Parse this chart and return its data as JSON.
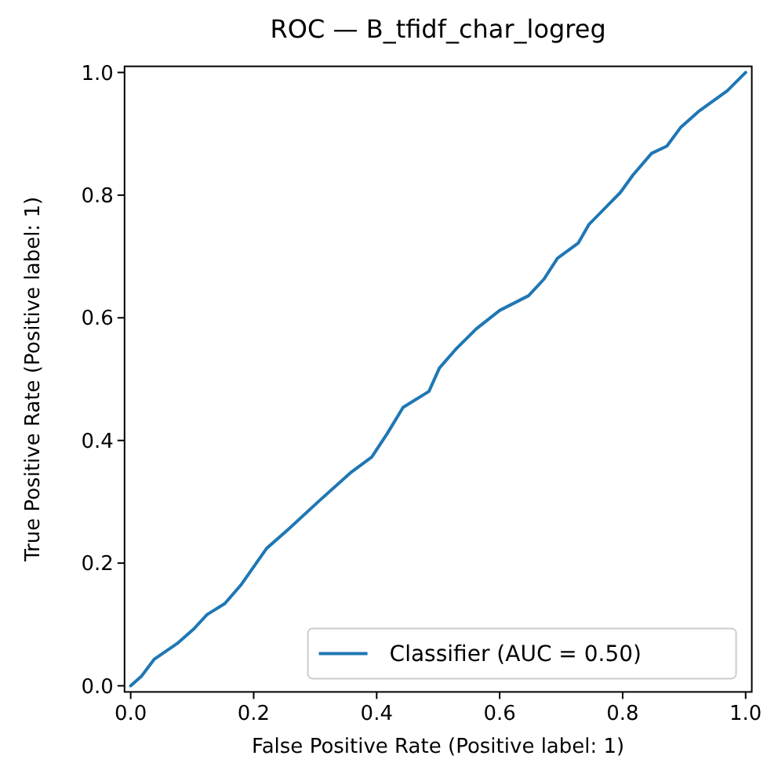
{
  "chart_data": {
    "type": "line",
    "title": "ROC — B_tfidf_char_logreg",
    "xlabel": "False Positive Rate (Positive label: 1)",
    "ylabel": "True Positive Rate (Positive label: 1)",
    "xlim": [
      -0.01,
      1.01
    ],
    "ylim": [
      -0.01,
      1.01
    ],
    "xticks": [
      {
        "value": 0,
        "label": "0.0"
      },
      0.2,
      0.4,
      0.6,
      0.8,
      {
        "value": 1,
        "label": "1.0"
      }
    ],
    "yticks": [
      {
        "value": 0,
        "label": "0.0"
      },
      0.2,
      0.4,
      0.6,
      0.8,
      {
        "value": 1,
        "label": "1.0"
      }
    ],
    "x": [
      0,
      0.017,
      0.038,
      0.077,
      0.102,
      0.124,
      0.153,
      0.179,
      0.221,
      0.255,
      0.306,
      0.357,
      0.392,
      0.417,
      0.443,
      0.485,
      0.502,
      0.528,
      0.562,
      0.6,
      0.647,
      0.672,
      0.694,
      0.728,
      0.745,
      0.796,
      0.817,
      0.847,
      0.872,
      0.894,
      0.923,
      0.97,
      1
    ],
    "series": [
      {
        "name": "Classifier (AUC = 0.50)",
        "color": "#1f77b4",
        "values": [
          0,
          0.015,
          0.043,
          0.07,
          0.092,
          0.116,
          0.134,
          0.164,
          0.224,
          0.254,
          0.301,
          0.347,
          0.373,
          0.411,
          0.454,
          0.48,
          0.518,
          0.548,
          0.582,
          0.612,
          0.636,
          0.663,
          0.697,
          0.722,
          0.752,
          0.804,
          0.833,
          0.868,
          0.88,
          0.91,
          0.936,
          0.97,
          1
        ]
      }
    ],
    "legend": "bottom right",
    "grid": false,
    "line_style": "solid",
    "marker": "none"
  }
}
